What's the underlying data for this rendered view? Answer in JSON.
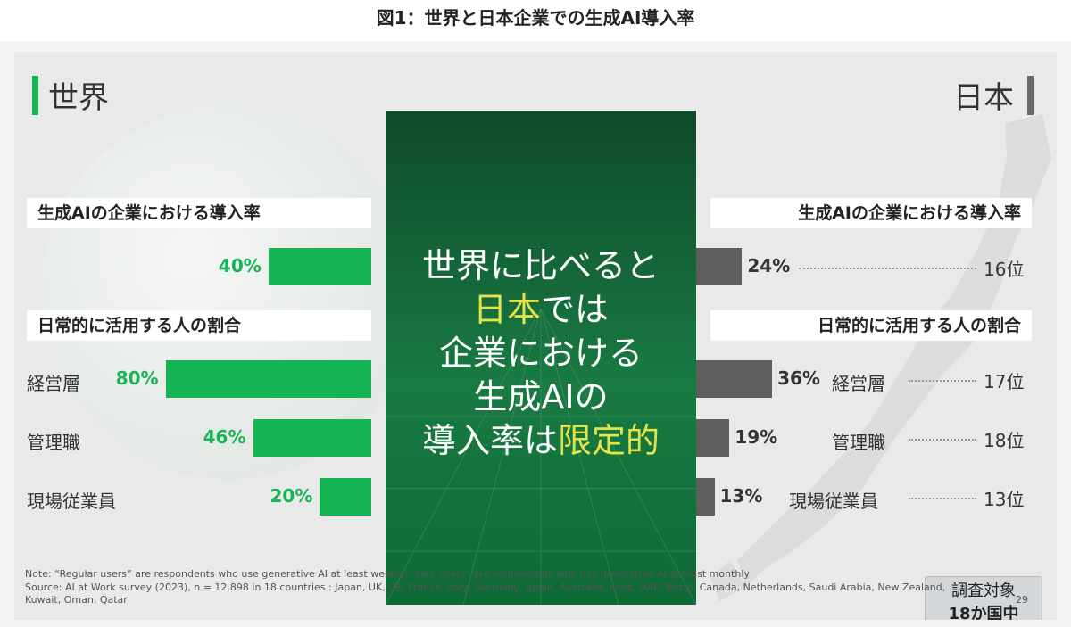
{
  "figure_title": "図1：世界と日本企業での生成AI導入率",
  "left_header": "世界",
  "right_header": "日本",
  "center_text": {
    "line1": "世界に比べると",
    "line2_hl": "日本",
    "line2_rest": "では",
    "line3": "企業における",
    "line4": "生成AIの",
    "line5_pre": "導入率は",
    "line5_hl": "限定的"
  },
  "section1_label": "生成AIの企業における導入率",
  "section2_label": "日常的に活用する人の割合",
  "survey_box": {
    "line1": "調査対象",
    "line2": "18か国中"
  },
  "note": "Note: “Regular users” are respondents who use generative AI at least weekly; “rare users” are respondents who use generative AI at least monthly",
  "source_line1": "Source: AI at Work survey (2023), n = 12,898 in 18 countries : Japan, UK, US, France, Italy, Germany, Spain, Australia, India, UAE, Brazil, Canada, Netherlands, Saudi Arabia, New Zealand,",
  "source_line2": "Kuwait, Oman, Qatar",
  "page_number": "29",
  "colors": {
    "world": "#17b455",
    "japan": "#5e5e5e",
    "highlight": "#e6e24a",
    "center_bg": "#176b3a"
  },
  "chart_data": [
    {
      "type": "bar",
      "title": "生成AIの企業における導入率",
      "categories": [
        ""
      ],
      "series": [
        {
          "name": "世界",
          "values": [
            40
          ],
          "labels": [
            "40%"
          ]
        },
        {
          "name": "日本",
          "values": [
            24
          ],
          "labels": [
            "24%"
          ],
          "ranks": [
            "16位"
          ]
        }
      ]
    },
    {
      "type": "bar",
      "title": "日常的に活用する人の割合",
      "categories": [
        "経営層",
        "管理職",
        "現場従業員"
      ],
      "series": [
        {
          "name": "世界",
          "values": [
            80,
            46,
            20
          ],
          "labels": [
            "80%",
            "46%",
            "20%"
          ]
        },
        {
          "name": "日本",
          "values": [
            36,
            19,
            13
          ],
          "labels": [
            "36%",
            "19%",
            "13%"
          ],
          "ranks": [
            "17位",
            "18位",
            "13位"
          ]
        }
      ]
    }
  ]
}
